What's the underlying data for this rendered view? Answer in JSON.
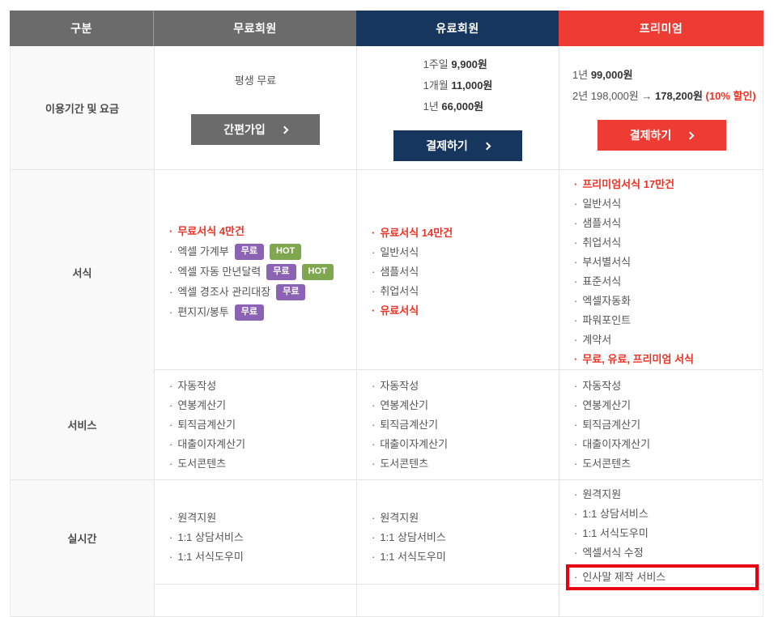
{
  "ui": {
    "bullet": "·"
  },
  "colors": {
    "header_gray": "#6b6b6b",
    "header_navy": "#17365d",
    "header_red": "#ee3b33",
    "emphasis_red": "#ee3124",
    "badge_purple": "#8c62b5",
    "badge_green": "#7fa750",
    "highlight_box_red": "#e60012"
  },
  "header": {
    "columns": [
      {
        "id": "category",
        "label": "구분"
      },
      {
        "id": "free",
        "label": "무료회원"
      },
      {
        "id": "paid",
        "label": "유료회원"
      },
      {
        "id": "premium",
        "label": "프리미엄"
      }
    ]
  },
  "rows": {
    "pricing": {
      "label": "이용기간 및 요금",
      "free": {
        "lines": [
          {
            "prefix": "평생 무료"
          }
        ],
        "button_label": "간편가입"
      },
      "paid": {
        "lines": [
          {
            "prefix": "1주일 ",
            "strong": "9,900원"
          },
          {
            "prefix": "1개월 ",
            "strong": "11,000원"
          },
          {
            "prefix": "1년 ",
            "strong": "66,000원"
          }
        ],
        "button_label": "결제하기"
      },
      "premium": {
        "lines": [
          {
            "prefix": "1년 ",
            "strong": "99,000원"
          },
          {
            "prefix": "2년 198,000원 → ",
            "strong": "178,200원",
            "note": " (10% 할인)"
          }
        ],
        "button_label": "결제하기"
      }
    },
    "forms": {
      "label": "서식",
      "free": {
        "items": [
          {
            "text": "무료서식 4만건",
            "emphasis": true
          },
          {
            "text": "엑셀 가계부",
            "badges": [
              {
                "label": "무료",
                "style": "purple"
              },
              {
                "label": "HOT",
                "style": "green"
              }
            ]
          },
          {
            "text": "엑셀 자동 만년달력",
            "badges": [
              {
                "label": "무료",
                "style": "purple"
              },
              {
                "label": "HOT",
                "style": "green"
              }
            ]
          },
          {
            "text": "엑셀 경조사 관리대장",
            "badges": [
              {
                "label": "무료",
                "style": "purple"
              }
            ]
          },
          {
            "text": "편지지/봉투",
            "badges": [
              {
                "label": "무료",
                "style": "purple"
              }
            ]
          }
        ]
      },
      "paid": {
        "items": [
          {
            "text": "유료서식 14만건",
            "emphasis": true
          },
          {
            "text": "일반서식"
          },
          {
            "text": "샘플서식"
          },
          {
            "text": "취업서식"
          },
          {
            "text": "유료서식",
            "emphasis": true
          }
        ]
      },
      "premium": {
        "items": [
          {
            "text": "프리미엄서식 17만건",
            "emphasis": true
          },
          {
            "text": "일반서식"
          },
          {
            "text": "샘플서식"
          },
          {
            "text": "취업서식"
          },
          {
            "text": "부서별서식"
          },
          {
            "text": "표준서식"
          },
          {
            "text": "엑셀자동화"
          },
          {
            "text": "파워포인트"
          },
          {
            "text": "계약서"
          },
          {
            "text": "무료, 유료, 프리미엄 서식",
            "emphasis": true
          }
        ]
      }
    },
    "services": {
      "label": "서비스",
      "free": {
        "items": [
          {
            "text": "자동작성"
          },
          {
            "text": "연봉계산기"
          },
          {
            "text": "퇴직금계산기"
          },
          {
            "text": "대출이자계산기"
          },
          {
            "text": "도서콘텐츠"
          }
        ]
      },
      "paid": {
        "items": [
          {
            "text": "자동작성"
          },
          {
            "text": "연봉계산기"
          },
          {
            "text": "퇴직금계산기"
          },
          {
            "text": "대출이자계산기"
          },
          {
            "text": "도서콘텐츠"
          }
        ]
      },
      "premium": {
        "items": [
          {
            "text": "자동작성"
          },
          {
            "text": "연봉계산기"
          },
          {
            "text": "퇴직금계산기"
          },
          {
            "text": "대출이자계산기"
          },
          {
            "text": "도서콘텐츠"
          }
        ]
      }
    },
    "realtime": {
      "label": "실시간",
      "free": {
        "items": [
          {
            "text": "원격지원"
          },
          {
            "text": "1:1 상담서비스"
          },
          {
            "text": "1:1 서식도우미"
          }
        ]
      },
      "paid": {
        "items": [
          {
            "text": "원격지원"
          },
          {
            "text": "1:1 상담서비스"
          },
          {
            "text": "1:1 서식도우미"
          }
        ]
      },
      "premium": {
        "items": [
          {
            "text": "원격지원"
          },
          {
            "text": "1:1 상담서비스"
          },
          {
            "text": "1:1 서식도우미"
          },
          {
            "text": "엑셀서식 수정"
          },
          {
            "text": "인사말 제작 서비스",
            "highlighted": true
          }
        ]
      }
    }
  }
}
